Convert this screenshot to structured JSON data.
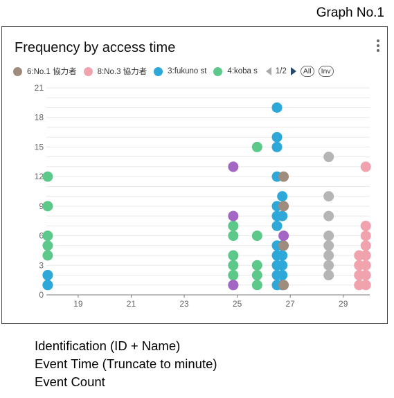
{
  "graph_label": "Graph No.1",
  "footer": {
    "line1": "Identification (ID + Name)",
    "line2": "Event Time (Truncate to minute)",
    "line3": "Event Count"
  },
  "legend": {
    "items": [
      {
        "label": "6:No.1 協力者",
        "color": "#a08c7d"
      },
      {
        "label": "8:No.3 協力者",
        "color": "#f0a3ac"
      },
      {
        "label": "3:fukuno st",
        "color": "#2ea7d9"
      },
      {
        "label": "4:koba s",
        "color": "#5cc98a"
      }
    ],
    "page": "1/2",
    "all_label": "All",
    "inv_label": "Inv"
  },
  "colors": {
    "purple": "#a466c4",
    "gray": "#b5b5b5"
  },
  "chart_data": {
    "type": "scatter",
    "title": "Frequency by access time",
    "xlabel": "",
    "ylabel": "",
    "xlim": [
      17.8,
      30
    ],
    "ylim": [
      0,
      21
    ],
    "x_ticks": [
      19,
      21,
      23,
      25,
      27,
      29
    ],
    "y_ticks": [
      0,
      3,
      6,
      9,
      12,
      15,
      18,
      21
    ],
    "grid": "horizontal",
    "legend_position": "top",
    "series": [
      {
        "name": "4:koba s",
        "color": "#5cc98a",
        "points": [
          [
            17.85,
            1
          ],
          [
            17.85,
            2
          ],
          [
            17.85,
            4
          ],
          [
            17.85,
            5
          ],
          [
            17.85,
            6
          ],
          [
            17.85,
            9
          ],
          [
            17.85,
            12
          ],
          [
            24.85,
            1
          ],
          [
            24.85,
            2
          ],
          [
            24.85,
            3
          ],
          [
            24.85,
            4
          ],
          [
            24.85,
            6
          ],
          [
            24.85,
            7
          ],
          [
            25.75,
            1
          ],
          [
            25.75,
            2
          ],
          [
            25.75,
            3
          ],
          [
            25.75,
            6
          ],
          [
            25.75,
            15
          ]
        ]
      },
      {
        "name": "3:fukuno st",
        "color": "#2ea7d9",
        "points": [
          [
            17.85,
            1
          ],
          [
            17.85,
            2
          ],
          [
            26.5,
            1
          ],
          [
            26.5,
            2
          ],
          [
            26.5,
            3
          ],
          [
            26.5,
            4
          ],
          [
            26.5,
            5
          ],
          [
            26.5,
            7
          ],
          [
            26.5,
            8
          ],
          [
            26.5,
            9
          ],
          [
            26.5,
            12
          ],
          [
            26.5,
            15
          ],
          [
            26.5,
            16
          ],
          [
            26.5,
            19
          ],
          [
            26.7,
            1
          ],
          [
            26.7,
            2
          ],
          [
            26.7,
            3
          ],
          [
            26.7,
            4
          ],
          [
            26.7,
            5
          ],
          [
            26.7,
            8
          ],
          [
            26.7,
            10
          ]
        ]
      },
      {
        "name": "6:No.1 協力者",
        "color": "#a08c7d",
        "points": [
          [
            26.75,
            1
          ],
          [
            26.75,
            5
          ],
          [
            26.75,
            9
          ],
          [
            26.75,
            12
          ]
        ]
      },
      {
        "name": "8:No.3 協力者",
        "color": "#f0a3ac",
        "points": [
          [
            29.6,
            1
          ],
          [
            29.6,
            2
          ],
          [
            29.6,
            3
          ],
          [
            29.6,
            4
          ],
          [
            29.85,
            1
          ],
          [
            29.85,
            2
          ],
          [
            29.85,
            3
          ],
          [
            29.85,
            4
          ],
          [
            29.85,
            5
          ],
          [
            29.85,
            6
          ],
          [
            29.85,
            7
          ],
          [
            29.85,
            13
          ]
        ]
      },
      {
        "color": "#a466c4",
        "points": [
          [
            24.85,
            1
          ],
          [
            24.85,
            8
          ],
          [
            24.85,
            13
          ],
          [
            26.75,
            6
          ]
        ]
      },
      {
        "color": "#b5b5b5",
        "points": [
          [
            28.45,
            2
          ],
          [
            28.45,
            3
          ],
          [
            28.45,
            4
          ],
          [
            28.45,
            5
          ],
          [
            28.45,
            6
          ],
          [
            28.45,
            8
          ],
          [
            28.45,
            10
          ],
          [
            28.45,
            14
          ]
        ]
      }
    ]
  }
}
